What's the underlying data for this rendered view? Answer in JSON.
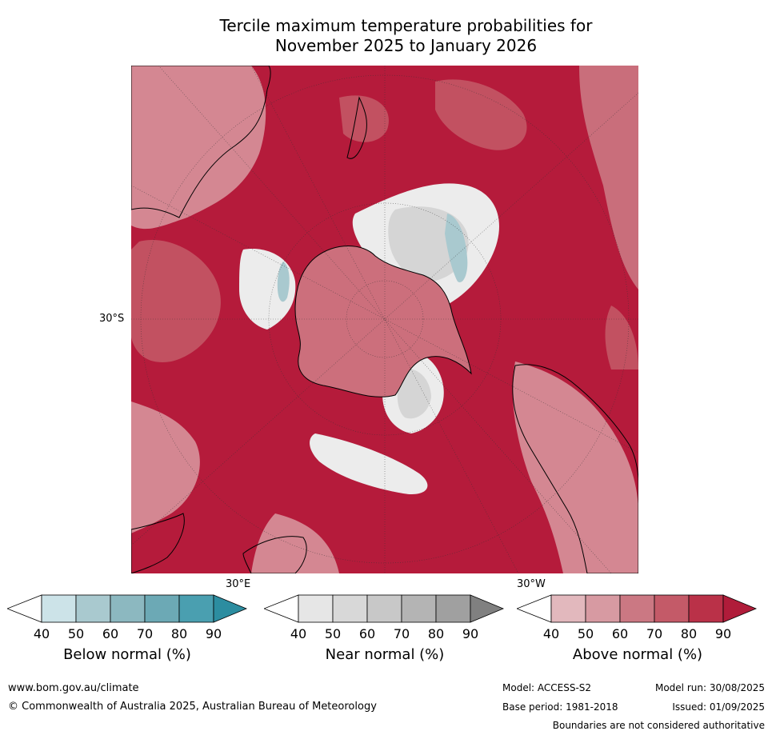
{
  "title_line1": "Tercile maximum temperature probabilities for",
  "title_line2": "November 2025 to January 2026",
  "map": {
    "projection": "south-polar-stereographic",
    "lat_label": "30°S",
    "lon_label_east": "30°E",
    "lon_label_west": "30°W",
    "graticule": true,
    "dominant_category": "above-normal"
  },
  "legends": [
    {
      "title": "Below normal (%)",
      "ticks": [
        "40",
        "50",
        "60",
        "70",
        "80",
        "90"
      ],
      "colors": [
        "#ffffff",
        "#cce3e8",
        "#a9c9cf",
        "#8cb8c0",
        "#6ca9b5",
        "#4a9fb0",
        "#2c8da0"
      ]
    },
    {
      "title": "Near normal (%)",
      "ticks": [
        "40",
        "50",
        "60",
        "70",
        "80",
        "90"
      ],
      "colors": [
        "#ffffff",
        "#e6e6e6",
        "#d8d8d8",
        "#c8c8c8",
        "#b4b4b4",
        "#a0a0a0",
        "#808080"
      ]
    },
    {
      "title": "Above normal (%)",
      "ticks": [
        "40",
        "50",
        "60",
        "70",
        "80",
        "90"
      ],
      "colors": [
        "#ffffff",
        "#e2b8bd",
        "#d79aa2",
        "#cb7883",
        "#c45a68",
        "#ba3148",
        "#b01c3a"
      ]
    }
  ],
  "footer": {
    "website": "www.bom.gov.au/climate",
    "copyright": "© Commonwealth of Australia 2025, Australian Bureau of Meteorology",
    "model": "Model: ACCESS-S2",
    "model_run": "Model run: 30/08/2025",
    "base_period": "Base period: 1981-2018",
    "issued": "Issued: 01/09/2025",
    "disclaimer": "Boundaries are not considered authoritative"
  }
}
